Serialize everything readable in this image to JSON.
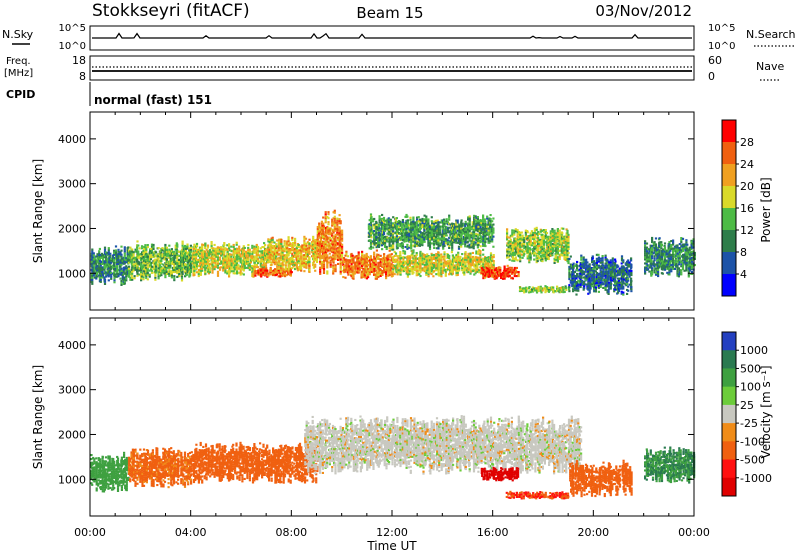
{
  "header": {
    "station": "Stokkseyri (fitACF)",
    "beam": "Beam 15",
    "date": "03/Nov/2012"
  },
  "top_panel": {
    "left_label": "N.Sky",
    "right_label": "N.Search",
    "ticks_left": [
      "10^5",
      "10^0"
    ],
    "ticks_right": [
      "10^5",
      "10^0"
    ]
  },
  "freq_panel": {
    "left_label_line1": "Freq.",
    "left_label_line2": "[MHz]",
    "right_label": "Nave",
    "ticks_left": [
      "18",
      "8"
    ],
    "ticks_right": [
      "60",
      "0"
    ]
  },
  "cpid_panel": {
    "label": "CPID",
    "mode": "normal (fast) 151"
  },
  "axes": {
    "ylabel": "Slant Range [km]",
    "xlabel": "Time UT",
    "yticks": [
      "4000",
      "3000",
      "2000",
      "1000"
    ],
    "xticks": [
      "00:00",
      "04:00",
      "08:00",
      "12:00",
      "16:00",
      "20:00",
      "00:00"
    ]
  },
  "power_scale": {
    "label": "Power [dB]",
    "ticks": [
      "28",
      "24",
      "20",
      "16",
      "12",
      "8",
      "4"
    ],
    "colors": [
      "#0000ff",
      "#1c53a8",
      "#2e7d4a",
      "#4dbb45",
      "#d9d929",
      "#f0a020",
      "#f06010",
      "#ff0000"
    ]
  },
  "velocity_scale": {
    "label": "Velocity [m s⁻¹]",
    "ticks": [
      "1000",
      "500",
      "100",
      "25",
      "-25",
      "-100",
      "-500",
      "-1000"
    ],
    "colors": [
      "#2440c0",
      "#2a7a50",
      "#3ea040",
      "#6ccc3a",
      "#c8c8c0",
      "#f08c18",
      "#f06010",
      "#ff1010",
      "#e00000"
    ]
  },
  "chart_data": [
    {
      "type": "heatmap",
      "panel": "power",
      "xlabel": "Time UT",
      "ylabel": "Slant Range [km]",
      "xlim_hours": [
        0,
        24
      ],
      "ylim_km": [
        180,
        4600
      ],
      "colorbar_label": "Power [dB]",
      "colorbar_range_db": [
        0,
        32
      ],
      "echo_regions": [
        {
          "t": [
            0,
            1.5
          ],
          "r": [
            700,
            1600
          ],
          "db": 10
        },
        {
          "t": [
            1.5,
            4
          ],
          "r": [
            800,
            1700
          ],
          "db": 14
        },
        {
          "t": [
            4,
            7
          ],
          "r": [
            900,
            1700
          ],
          "db": 18
        },
        {
          "t": [
            6.5,
            8
          ],
          "r": [
            900,
            1100
          ],
          "db": 26
        },
        {
          "t": [
            7,
            9
          ],
          "r": [
            1000,
            1800
          ],
          "db": 20
        },
        {
          "t": [
            9,
            10
          ],
          "r": [
            900,
            2400
          ],
          "db": 24
        },
        {
          "t": [
            10,
            12
          ],
          "r": [
            850,
            1500
          ],
          "db": 24
        },
        {
          "t": [
            11,
            16
          ],
          "r": [
            1500,
            2300
          ],
          "db": 12
        },
        {
          "t": [
            12,
            16
          ],
          "r": [
            900,
            1500
          ],
          "db": 18
        },
        {
          "t": [
            15.5,
            17
          ],
          "r": [
            850,
            1150
          ],
          "db": 28
        },
        {
          "t": [
            16.5,
            19
          ],
          "r": [
            1200,
            2000
          ],
          "db": 16
        },
        {
          "t": [
            17,
            19
          ],
          "r": [
            550,
            700
          ],
          "db": 16
        },
        {
          "t": [
            19,
            21.5
          ],
          "r": [
            500,
            1400
          ],
          "db": 8
        },
        {
          "t": [
            22,
            24
          ],
          "r": [
            900,
            1800
          ],
          "db": 10
        }
      ]
    },
    {
      "type": "heatmap",
      "panel": "velocity",
      "xlabel": "Time UT",
      "ylabel": "Slant Range [km]",
      "xlim_hours": [
        0,
        24
      ],
      "ylim_km": [
        180,
        4600
      ],
      "colorbar_label": "Velocity [m s⁻¹]",
      "echo_regions": [
        {
          "t": [
            0,
            1.5
          ],
          "r": [
            700,
            1600
          ],
          "v": 200
        },
        {
          "t": [
            1.5,
            4
          ],
          "r": [
            800,
            1700
          ],
          "v": -80
        },
        {
          "t": [
            4,
            9
          ],
          "r": [
            900,
            1800
          ],
          "v": -150
        },
        {
          "t": [
            8.5,
            19.5
          ],
          "r": [
            1100,
            2400
          ],
          "v": 0
        },
        {
          "t": [
            15.5,
            17
          ],
          "r": [
            950,
            1250
          ],
          "v": -800
        },
        {
          "t": [
            16.5,
            19
          ],
          "r": [
            550,
            700
          ],
          "v": -300
        },
        {
          "t": [
            19,
            21.5
          ],
          "r": [
            600,
            1400
          ],
          "v": -200
        },
        {
          "t": [
            22,
            24
          ],
          "r": [
            900,
            1700
          ],
          "v": 300
        }
      ]
    }
  ]
}
